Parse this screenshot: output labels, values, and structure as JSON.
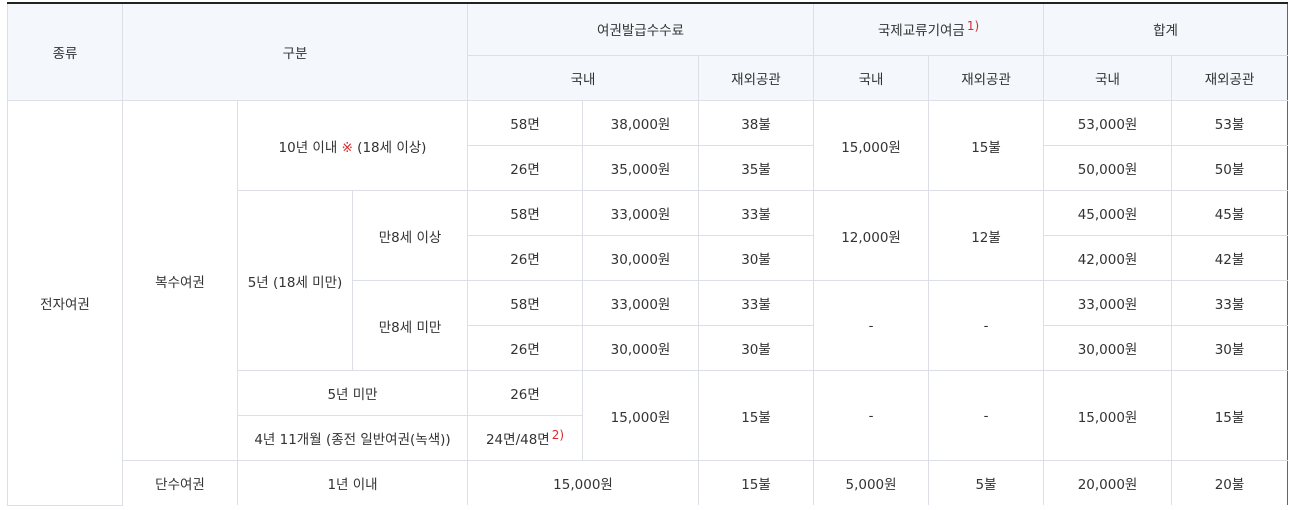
{
  "headers": {
    "type": "종류",
    "category": "구분",
    "fee": "여권발급수수료",
    "intl": "국제교류기여금",
    "intl_note": "1)",
    "total": "합계",
    "domestic": "국내",
    "overseas": "재외공관"
  },
  "rows": {
    "type": "전자여권",
    "multi": "복수여권",
    "single": "단수여권",
    "ten_year_prefix": "10년 이내 ",
    "mark": "※",
    "ten_year_suffix": " (18세 이상)",
    "five_year": "5년 (18세 미만)",
    "over8": "만8세 이상",
    "under8": "만8세 미만",
    "under5": "5년 미만",
    "old_passport": "4년 11개월 (종전 일반여권(녹색))",
    "one_year": "1년 이내",
    "p58": "58면",
    "p26": "26면",
    "p24_48": "24면/48면",
    "p_note": "2)",
    "f38000": "38,000원",
    "f35000": "35,000원",
    "f33000": "33,000원",
    "f30000": "30,000원",
    "f15000": "15,000원",
    "d38": "38불",
    "d35": "35불",
    "d33": "33불",
    "d30": "30불",
    "d15": "15불",
    "i15000": "15,000원",
    "i15": "15불",
    "i12000": "12,000원",
    "i12": "12불",
    "dash": "-",
    "i5000": "5,000원",
    "i5": "5불",
    "t53000": "53,000원",
    "t53": "53불",
    "t50000": "50,000원",
    "t50": "50불",
    "t45000": "45,000원",
    "t45": "45불",
    "t42000": "42,000원",
    "t42": "42불",
    "t33000": "33,000원",
    "t33": "33불",
    "t30000": "30,000원",
    "t30": "30불",
    "t15000": "15,000원",
    "t15": "15불",
    "t20000": "20,000원",
    "t20": "20불"
  }
}
